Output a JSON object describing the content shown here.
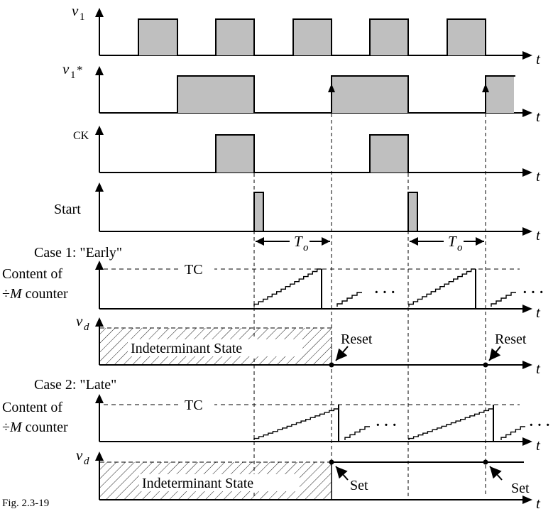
{
  "figure_label": "Fig. 2.3-19",
  "colors": {
    "pulse_fill": "#bfbfbf",
    "line": "#000000",
    "background": "#ffffff"
  },
  "signals": {
    "v1": {
      "label": "v",
      "sub": "1"
    },
    "v1star": {
      "label": "v",
      "sub": "1",
      "sup": "*"
    },
    "ck": {
      "label": "CK"
    },
    "start": {
      "label": "Start"
    }
  },
  "time_axis": "t",
  "period": {
    "label": "T",
    "sub": "o"
  },
  "tc_label": "TC",
  "case1": {
    "title": "Case 1: \"Early\"",
    "counter_line1": "Content of",
    "counter_line2_prefix": "÷",
    "counter_line2_var": "M",
    "counter_line2_suffix": " counter",
    "vd_label": "v",
    "vd_sub": "d",
    "state_text": "Indeterminant State",
    "event_label": "Reset",
    "ellipsis": "· · ·"
  },
  "case2": {
    "title": "Case 2: \"Late\"",
    "counter_line1": "Content of",
    "counter_line2_prefix": "÷",
    "counter_line2_var": "M",
    "counter_line2_suffix": " counter",
    "vd_label": "v",
    "vd_sub": "d",
    "state_text": "Indeterminant State",
    "event_label": "Set",
    "ellipsis": "· · ·"
  }
}
